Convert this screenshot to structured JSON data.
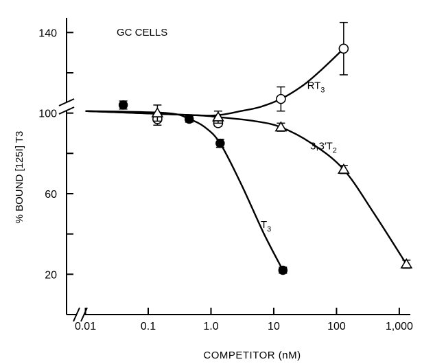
{
  "chart_data": {
    "type": "scatter",
    "title": "GC CELLS",
    "xlabel": "COMPETITOR (nM)",
    "ylabel_main": "% BOUND ",
    "ylabel_bracket": "[125I]",
    "ylabel_tail": " T3",
    "x_scale": "log",
    "xlim": [
      0.005,
      1500
    ],
    "ylim": [
      0,
      150
    ],
    "x_ticks": [
      0.01,
      0.1,
      1.0,
      10,
      100,
      1000
    ],
    "x_tick_labels": [
      "0.01",
      "0.1",
      "1.0",
      "10",
      "100",
      "1,000"
    ],
    "y_ticks": [
      20,
      40,
      60,
      80,
      100,
      120,
      140
    ],
    "y_tick_labels": [
      "20",
      "",
      "60",
      "",
      "100",
      "",
      "140"
    ],
    "series": [
      {
        "name": "T3",
        "label_base": "T",
        "label_sub": "3",
        "marker": "filled-circle",
        "points": [
          {
            "x": 0.04,
            "y": 104,
            "err": 2
          },
          {
            "x": 0.45,
            "y": 97,
            "err": 1.5
          },
          {
            "x": 1.4,
            "y": 85,
            "err": 2
          },
          {
            "x": 14,
            "y": 22,
            "err": 1.5
          }
        ],
        "curve": [
          [
            0.01,
            101
          ],
          [
            0.2,
            100
          ],
          [
            0.45,
            97
          ],
          [
            0.8,
            93
          ],
          [
            1.4,
            85
          ],
          [
            3,
            65
          ],
          [
            7,
            40
          ],
          [
            14,
            22
          ]
        ]
      },
      {
        "name": "RT3",
        "label_base": "RT",
        "label_sub": "3",
        "marker": "open-circle",
        "points": [
          {
            "x": 0.14,
            "y": 97,
            "err": 3
          },
          {
            "x": 1.3,
            "y": 95,
            "err": 1.5
          },
          {
            "x": 13,
            "y": 107,
            "err": 6
          },
          {
            "x": 130,
            "y": 132,
            "err": 13
          }
        ],
        "curve": [
          [
            0.01,
            101
          ],
          [
            0.5,
            99
          ],
          [
            1.3,
            99
          ],
          [
            3,
            101
          ],
          [
            6,
            103
          ],
          [
            13,
            107
          ],
          [
            30,
            114
          ],
          [
            60,
            122
          ],
          [
            130,
            132
          ]
        ]
      },
      {
        "name": "3,3'T2",
        "label_base": "3,3′T",
        "label_sub": "2",
        "marker": "open-triangle",
        "points": [
          {
            "x": 0.14,
            "y": 100,
            "err": 4
          },
          {
            "x": 1.3,
            "y": 98,
            "err": 3
          },
          {
            "x": 13,
            "y": 93,
            "err": 2
          },
          {
            "x": 130,
            "y": 72,
            "err": 2
          },
          {
            "x": 1300,
            "y": 25,
            "err": 2
          }
        ],
        "curve": [
          [
            0.01,
            101
          ],
          [
            0.5,
            99
          ],
          [
            1.3,
            98
          ],
          [
            5,
            96
          ],
          [
            13,
            93
          ],
          [
            40,
            85
          ],
          [
            130,
            72
          ],
          [
            400,
            50
          ],
          [
            1300,
            25
          ]
        ]
      }
    ],
    "series_label_anchor": {
      "T3": {
        "x": 6.2,
        "y": 43
      },
      "RT3": {
        "x": 34,
        "y": 112
      },
      "3,3'T2": {
        "x": 38,
        "y": 82
      }
    }
  }
}
